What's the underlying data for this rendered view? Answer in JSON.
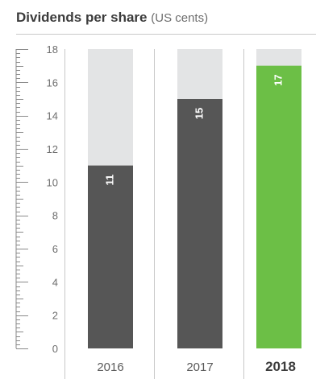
{
  "title": {
    "main": "Dividends per share",
    "sub": "(US cents)"
  },
  "colors": {
    "bar": "#565656",
    "bar_highlight": "#6cbf46",
    "bar_background": "#e3e4e5",
    "axis": "#8a8a8a",
    "divider": "#c8c8c8"
  },
  "chart_data": {
    "type": "bar",
    "title": "Dividends per share (US cents)",
    "xlabel": "",
    "ylabel": "",
    "ylim": [
      0,
      18
    ],
    "yticks": [
      0,
      2,
      4,
      6,
      8,
      10,
      12,
      14,
      16,
      18
    ],
    "categories": [
      "2016",
      "2017",
      "2018"
    ],
    "values": [
      11,
      15,
      17
    ],
    "data_labels": [
      "11",
      "15",
      "17"
    ],
    "highlight_category": "2018",
    "grid": false,
    "legend": "none"
  }
}
